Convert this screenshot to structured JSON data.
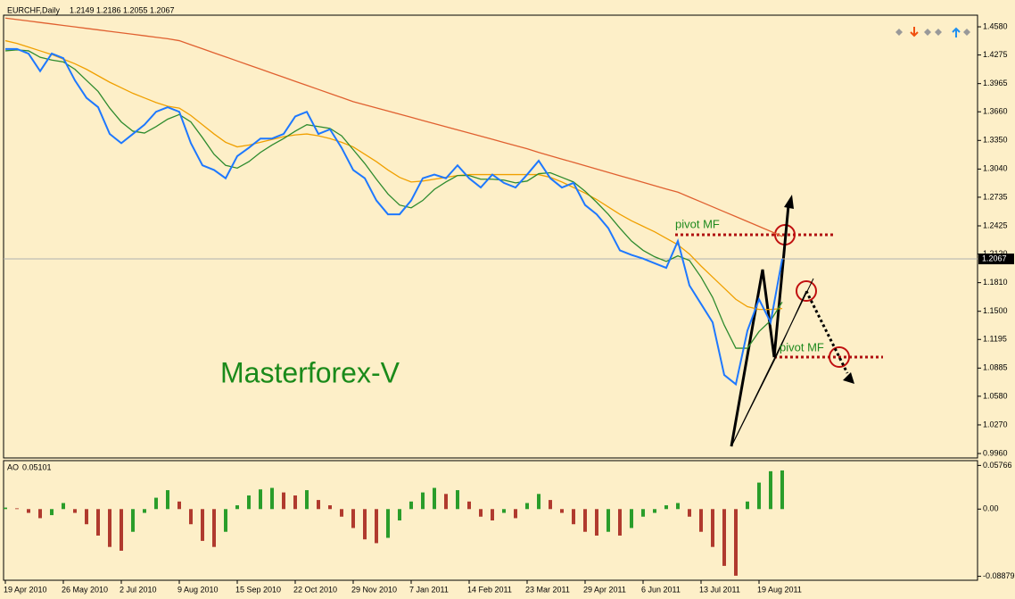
{
  "chart_data": {
    "type": "line",
    "symbol": "EURCHF,Daily",
    "open": 1.2149,
    "high": 1.2186,
    "low": 1.2055,
    "close": 1.2067,
    "last_price": 1.2067,
    "annotations": [
      "pivot MF",
      "pivot MF",
      "Masterforex-V"
    ],
    "categories": [
      "19 Apr 2010",
      null,
      null,
      null,
      null,
      "26 May 2010",
      null,
      null,
      null,
      null,
      "2 Jul 2010",
      null,
      null,
      null,
      null,
      "9 Aug 2010",
      null,
      null,
      null,
      null,
      "15 Sep 2010",
      null,
      null,
      null,
      null,
      "22 Oct 2010",
      null,
      null,
      null,
      null,
      "29 Nov 2010",
      null,
      null,
      null,
      null,
      "7 Jan 2011",
      null,
      null,
      null,
      null,
      "14 Feb 2011",
      null,
      null,
      null,
      null,
      "23 Mar 2011",
      null,
      null,
      null,
      null,
      "29 Apr 2011",
      null,
      null,
      null,
      null,
      "6 Jun 2011",
      null,
      null,
      null,
      null,
      "13 Jul 2011",
      null,
      null,
      null,
      null,
      "19 Aug 2011",
      null,
      null
    ],
    "series": [
      {
        "color": "#e06030",
        "values": [
          1.4675,
          1.4659,
          1.4643,
          1.4627,
          1.4611,
          1.4595,
          1.4579,
          1.4563,
          1.4547,
          1.4531,
          1.4515,
          1.4499,
          1.4483,
          1.4467,
          1.4451,
          1.443,
          1.4386,
          1.4342,
          1.4298,
          1.4254,
          1.421,
          1.4166,
          1.4122,
          1.4078,
          1.4034,
          1.399,
          1.3946,
          1.3902,
          1.3858,
          1.3814,
          1.377,
          1.3736,
          1.3702,
          1.3668,
          1.3634,
          1.36,
          1.3566,
          1.3532,
          1.3498,
          1.3464,
          1.343,
          1.3396,
          1.3362,
          1.3328,
          1.3294,
          1.326,
          1.322,
          1.3184,
          1.3148,
          1.3112,
          1.3076,
          1.304,
          1.3004,
          1.2968,
          1.2932,
          1.2896,
          1.286,
          1.2824,
          1.279,
          1.2737,
          1.2684,
          1.2631,
          1.2578,
          1.2525,
          1.2472,
          1.2419,
          1.2366,
          1.231
        ]
      },
      {
        "color": "#f0a000",
        "values": [
          1.443,
          1.44,
          1.436,
          1.432,
          1.428,
          1.423,
          1.418,
          1.412,
          1.405,
          1.398,
          1.392,
          1.386,
          1.381,
          1.376,
          1.372,
          1.37,
          1.362,
          1.352,
          1.342,
          1.333,
          1.328,
          1.33,
          1.333,
          1.336,
          1.339,
          1.341,
          1.342,
          1.34,
          1.337,
          1.333,
          1.328,
          1.32,
          1.312,
          1.303,
          1.295,
          1.29,
          1.291,
          1.293,
          1.295,
          1.297,
          1.298,
          1.298,
          1.298,
          1.298,
          1.298,
          1.298,
          1.298,
          1.295,
          1.29,
          1.284,
          1.278,
          1.271,
          1.263,
          1.255,
          1.248,
          1.242,
          1.236,
          1.229,
          1.222,
          1.212,
          1.199,
          1.187,
          1.175,
          1.163,
          1.155,
          1.152,
          1.152,
          1.153
        ]
      },
      {
        "color": "#2e8b2e",
        "values": [
          1.432,
          1.433,
          1.432,
          1.425,
          1.422,
          1.42,
          1.412,
          1.4,
          1.388,
          1.37,
          1.355,
          1.345,
          1.343,
          1.35,
          1.358,
          1.363,
          1.355,
          1.338,
          1.32,
          1.308,
          1.305,
          1.312,
          1.322,
          1.33,
          1.337,
          1.345,
          1.352,
          1.35,
          1.348,
          1.34,
          1.325,
          1.31,
          1.293,
          1.277,
          1.265,
          1.262,
          1.27,
          1.282,
          1.29,
          1.297,
          1.297,
          1.293,
          1.293,
          1.292,
          1.289,
          1.291,
          1.299,
          1.3,
          1.295,
          1.29,
          1.28,
          1.268,
          1.255,
          1.24,
          1.226,
          1.216,
          1.209,
          1.204,
          1.21,
          1.205,
          1.187,
          1.165,
          1.135,
          1.11,
          1.11,
          1.128,
          1.14,
          1.16
        ]
      },
      {
        "color": "#1e78ff",
        "values": [
          1.434,
          1.434,
          1.429,
          1.41,
          1.429,
          1.424,
          1.4,
          1.381,
          1.371,
          1.342,
          1.332,
          1.342,
          1.352,
          1.366,
          1.371,
          1.366,
          1.332,
          1.308,
          1.303,
          1.294,
          1.318,
          1.327,
          1.337,
          1.337,
          1.342,
          1.361,
          1.366,
          1.342,
          1.347,
          1.327,
          1.303,
          1.294,
          1.27,
          1.255,
          1.255,
          1.27,
          1.294,
          1.298,
          1.294,
          1.308,
          1.294,
          1.284,
          1.298,
          1.289,
          1.284,
          1.298,
          1.313,
          1.294,
          1.284,
          1.289,
          1.265,
          1.255,
          1.24,
          1.216,
          1.211,
          1.207,
          1.202,
          1.197,
          1.226,
          1.178,
          1.158,
          1.138,
          1.081,
          1.071,
          1.129,
          1.163,
          1.138,
          1.2067
        ]
      }
    ],
    "ylim": [
      0.9912,
      1.4706
    ],
    "yticks": [
      {
        "value": 1.458,
        "label": "1.4580"
      },
      1.4275,
      1.3965,
      {
        "value": 1.366,
        "label": "1.3660"
      },
      {
        "value": 1.335,
        "label": "1.3350"
      },
      {
        "value": 1.304,
        "label": "1.3040"
      },
      1.2735,
      1.2425,
      {
        "value": 1.212,
        "label": "1.2120"
      },
      {
        "value": 1.181,
        "label": "1.1810"
      },
      {
        "value": 1.15,
        "label": "1.1500"
      },
      1.1195,
      1.0885,
      {
        "value": 1.058,
        "label": "1.0580"
      },
      {
        "value": 1.027,
        "label": "1.0270"
      },
      {
        "value": 0.996,
        "label": "0.9960"
      }
    ],
    "indicator": {
      "type": "bar",
      "name": "AO",
      "current": 0.05101,
      "up_color": "#2a9d2a",
      "down_color": "#b03a2e",
      "values": [
        0.002,
        0.001,
        -0.005,
        -0.012,
        -0.008,
        0.008,
        -0.005,
        -0.02,
        -0.035,
        -0.05,
        -0.055,
        -0.03,
        -0.005,
        0.015,
        0.025,
        0.01,
        -0.02,
        -0.042,
        -0.05,
        -0.03,
        0.005,
        0.018,
        0.026,
        0.028,
        0.022,
        0.018,
        0.025,
        0.012,
        0.005,
        -0.01,
        -0.025,
        -0.04,
        -0.045,
        -0.038,
        -0.015,
        0.01,
        0.022,
        0.028,
        0.02,
        0.025,
        0.01,
        -0.01,
        -0.015,
        -0.005,
        -0.012,
        0.008,
        0.02,
        0.012,
        -0.005,
        -0.02,
        -0.03,
        -0.035,
        -0.03,
        -0.035,
        -0.025,
        -0.01,
        -0.005,
        0.005,
        0.008,
        -0.01,
        -0.03,
        -0.05,
        -0.075,
        -0.088,
        0.01,
        0.035,
        0.05,
        0.05101
      ],
      "ylim": [
        -0.094,
        0.064
      ],
      "yticks": [
        0.05766,
        {
          "value": 0,
          "label": "0.00"
        },
        -0.08879
      ]
    }
  }
}
